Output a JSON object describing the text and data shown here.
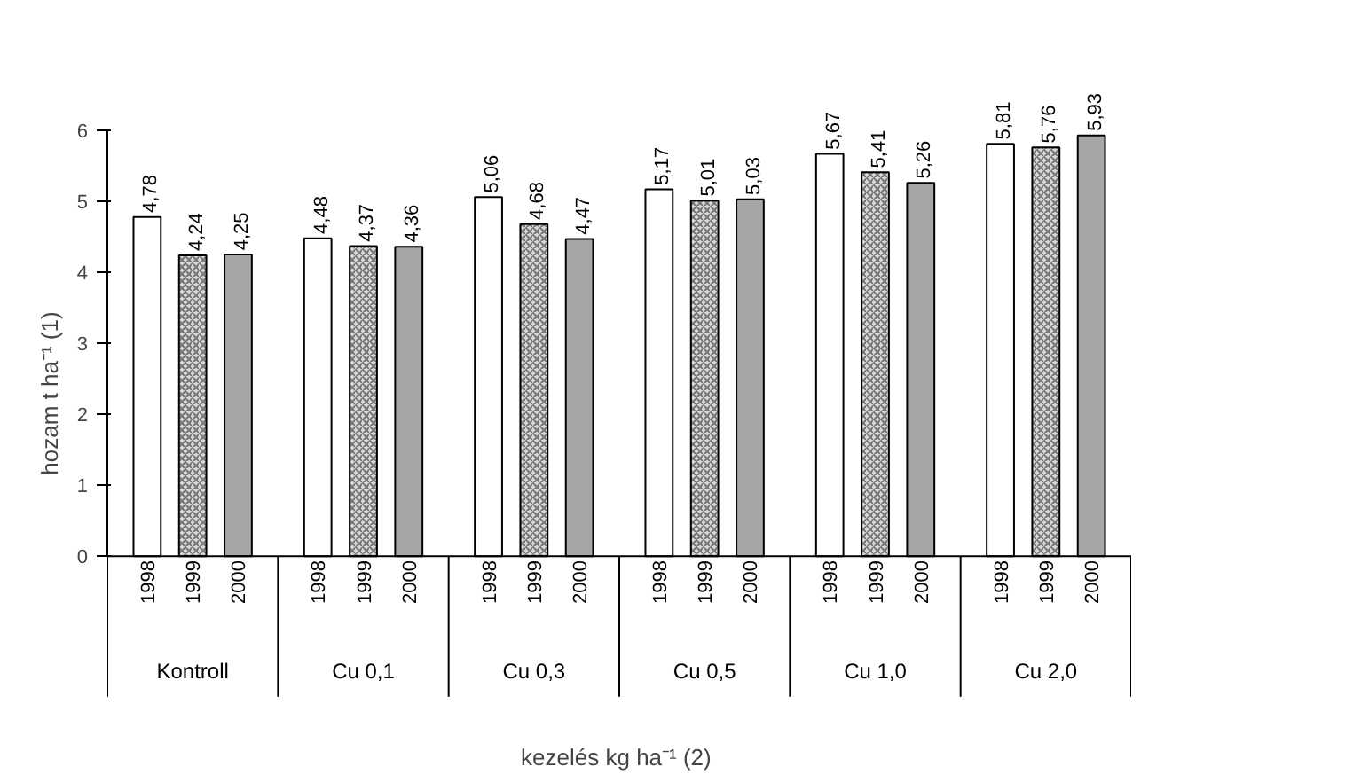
{
  "chart_data": {
    "type": "bar",
    "xlabel": "kezelés  kg ha⁻¹ (2)",
    "ylabel": "hozam  t ha⁻¹ (1)",
    "categories": [
      "Kontroll",
      "Cu 0,1",
      "Cu 0,3",
      "Cu 0,5",
      "Cu 1,0",
      "Cu 2,0"
    ],
    "series": [
      {
        "name": "1998",
        "color": "#ffffff",
        "values": [
          4.78,
          4.48,
          5.06,
          5.17,
          5.67,
          5.81
        ],
        "value_labels": [
          "4,78",
          "4,48",
          "5,06",
          "5,17",
          "5,67",
          "5,81"
        ]
      },
      {
        "name": "1999",
        "color": "#d9d9d9",
        "values": [
          4.24,
          4.37,
          4.68,
          5.01,
          5.41,
          5.76
        ],
        "value_labels": [
          "4,24",
          "4,37",
          "4,68",
          "5,01",
          "5,41",
          "5,76"
        ]
      },
      {
        "name": "2000",
        "color": "#a6a6a6",
        "values": [
          4.25,
          4.36,
          4.47,
          5.03,
          5.26,
          5.93
        ],
        "value_labels": [
          "4,25",
          "4,36",
          "4,47",
          "5,03",
          "5,26",
          "5,93"
        ]
      }
    ],
    "ylim": [
      0,
      6
    ],
    "yticks": [
      0,
      1,
      2,
      3,
      4,
      5,
      6
    ],
    "grid": false
  }
}
